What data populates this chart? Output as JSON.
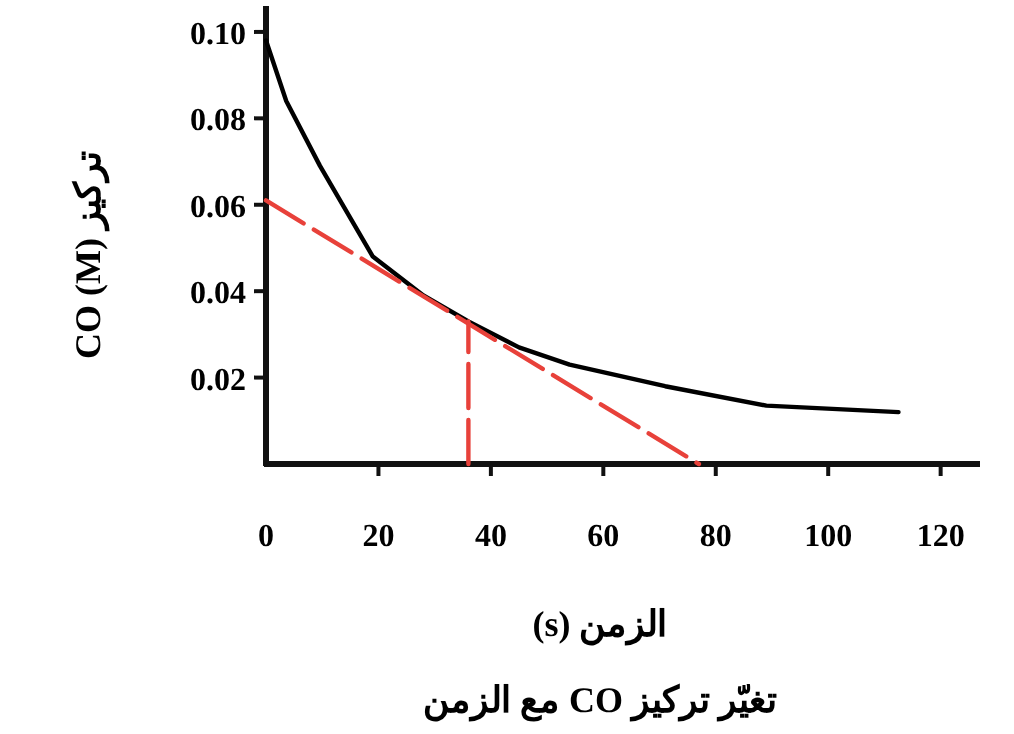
{
  "chart_data": {
    "type": "line",
    "title": "تغيّر تركيز CO مع الزمن",
    "xlabel": "الزمن (s)",
    "ylabel": "تركيز CO (M)",
    "xlim": [
      0,
      127
    ],
    "ylim": [
      0,
      0.106
    ],
    "xticks": [
      0,
      20,
      40,
      60,
      80,
      100,
      120
    ],
    "yticks": [
      0.02,
      0.04,
      0.06,
      0.08,
      {
        "value": 0.1,
        "label": "0.10"
      }
    ],
    "grid": false,
    "series": [
      {
        "color": "#000000",
        "line_style": "solid",
        "x": [
          0,
          3.6,
          9.6,
          19,
          28,
          36,
          45,
          54,
          71,
          89,
          112.5
        ],
        "values": [
          0.098,
          0.084,
          0.069,
          0.048,
          0.039,
          0.033,
          0.027,
          0.023,
          0.018,
          0.0135,
          0.012
        ]
      },
      {
        "color": "#e8413a",
        "line_style": "dashed",
        "x": [
          0,
          77
        ],
        "values": [
          0.061,
          0
        ]
      },
      {
        "color": "#e8413a",
        "line_style": "dashed",
        "x": [
          36,
          36
        ],
        "values": [
          0,
          0.033
        ]
      }
    ]
  }
}
